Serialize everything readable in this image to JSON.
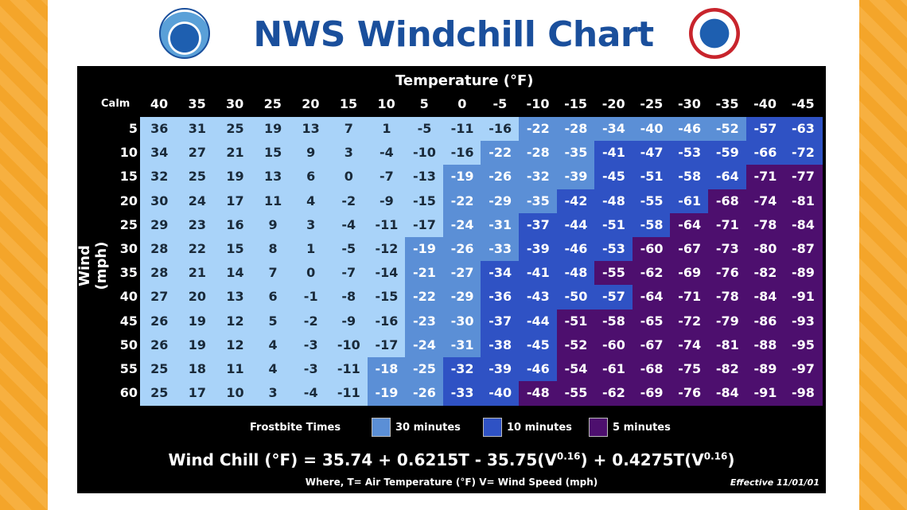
{
  "title": "NWS Windchill Chart",
  "logos": {
    "left": "NOAA",
    "right": "National Weather Service"
  },
  "colors": {
    "none": "#a9d3f9",
    "30": "#5b8fd6",
    "10": "#2f52c4",
    "5": "#4d0f6e",
    "title": "#1a4f9c",
    "frame": "#f4a52a"
  },
  "chart_data": {
    "type": "table",
    "title": "NWS Windchill Chart",
    "xlabel": "Temperature (°F)",
    "ylabel": "Wind (mph)",
    "calm_label": "Calm",
    "temperatures": [
      "40",
      "35",
      "30",
      "25",
      "20",
      "15",
      "10",
      "5",
      "0",
      "-5",
      "-10",
      "-15",
      "-20",
      "-25",
      "-30",
      "-35",
      "-40",
      "-45"
    ],
    "winds": [
      "5",
      "10",
      "15",
      "20",
      "25",
      "30",
      "35",
      "40",
      "45",
      "50",
      "55",
      "60"
    ],
    "values": [
      [
        36,
        31,
        25,
        19,
        13,
        7,
        1,
        -5,
        -11,
        -16,
        -22,
        -28,
        -34,
        -40,
        -46,
        -52,
        -57,
        -63
      ],
      [
        34,
        27,
        21,
        15,
        9,
        3,
        -4,
        -10,
        -16,
        -22,
        -28,
        -35,
        -41,
        -47,
        -53,
        -59,
        -66,
        -72
      ],
      [
        32,
        25,
        19,
        13,
        6,
        0,
        -7,
        -13,
        -19,
        -26,
        -32,
        -39,
        -45,
        -51,
        -58,
        -64,
        -71,
        -77
      ],
      [
        30,
        24,
        17,
        11,
        4,
        -2,
        -9,
        -15,
        -22,
        -29,
        -35,
        -42,
        -48,
        -55,
        -61,
        -68,
        -74,
        -81
      ],
      [
        29,
        23,
        16,
        9,
        3,
        -4,
        -11,
        -17,
        -24,
        -31,
        -37,
        -44,
        -51,
        -58,
        -64,
        -71,
        -78,
        -84
      ],
      [
        28,
        22,
        15,
        8,
        1,
        -5,
        -12,
        -19,
        -26,
        -33,
        -39,
        -46,
        -53,
        -60,
        -67,
        -73,
        -80,
        -87
      ],
      [
        28,
        21,
        14,
        7,
        0,
        -7,
        -14,
        -21,
        -27,
        -34,
        -41,
        -48,
        -55,
        -62,
        -69,
        -76,
        -82,
        -89
      ],
      [
        27,
        20,
        13,
        6,
        -1,
        -8,
        -15,
        -22,
        -29,
        -36,
        -43,
        -50,
        -57,
        -64,
        -71,
        -78,
        -84,
        -91
      ],
      [
        26,
        19,
        12,
        5,
        -2,
        -9,
        -16,
        -23,
        -30,
        -37,
        -44,
        -51,
        -58,
        -65,
        -72,
        -79,
        -86,
        -93
      ],
      [
        26,
        19,
        12,
        4,
        -3,
        -10,
        -17,
        -24,
        -31,
        -38,
        -45,
        -52,
        -60,
        -67,
        -74,
        -81,
        -88,
        -95
      ],
      [
        25,
        18,
        11,
        4,
        -3,
        -11,
        -18,
        -25,
        -32,
        -39,
        -46,
        -54,
        -61,
        -68,
        -75,
        -82,
        -89,
        -97
      ],
      [
        25,
        17,
        10,
        3,
        -4,
        -11,
        -19,
        -26,
        -33,
        -40,
        -48,
        -55,
        -62,
        -69,
        -76,
        -84,
        -91,
        -98
      ]
    ],
    "frostbite_zone_minutes": [
      [
        0,
        0,
        0,
        0,
        0,
        0,
        0,
        0,
        0,
        0,
        30,
        30,
        30,
        30,
        30,
        30,
        10,
        10
      ],
      [
        0,
        0,
        0,
        0,
        0,
        0,
        0,
        0,
        0,
        30,
        30,
        30,
        10,
        10,
        10,
        10,
        10,
        10
      ],
      [
        0,
        0,
        0,
        0,
        0,
        0,
        0,
        0,
        30,
        30,
        30,
        30,
        10,
        10,
        10,
        10,
        5,
        5
      ],
      [
        0,
        0,
        0,
        0,
        0,
        0,
        0,
        0,
        30,
        30,
        30,
        10,
        10,
        10,
        10,
        5,
        5,
        5
      ],
      [
        0,
        0,
        0,
        0,
        0,
        0,
        0,
        0,
        30,
        30,
        10,
        10,
        10,
        10,
        5,
        5,
        5,
        5
      ],
      [
        0,
        0,
        0,
        0,
        0,
        0,
        0,
        30,
        30,
        30,
        10,
        10,
        10,
        5,
        5,
        5,
        5,
        5
      ],
      [
        0,
        0,
        0,
        0,
        0,
        0,
        0,
        30,
        30,
        10,
        10,
        10,
        5,
        5,
        5,
        5,
        5,
        5
      ],
      [
        0,
        0,
        0,
        0,
        0,
        0,
        0,
        30,
        30,
        10,
        10,
        10,
        10,
        5,
        5,
        5,
        5,
        5
      ],
      [
        0,
        0,
        0,
        0,
        0,
        0,
        0,
        30,
        30,
        10,
        10,
        5,
        5,
        5,
        5,
        5,
        5,
        5
      ],
      [
        0,
        0,
        0,
        0,
        0,
        0,
        0,
        30,
        30,
        10,
        10,
        5,
        5,
        5,
        5,
        5,
        5,
        5
      ],
      [
        0,
        0,
        0,
        0,
        0,
        0,
        30,
        30,
        10,
        10,
        10,
        5,
        5,
        5,
        5,
        5,
        5,
        5
      ],
      [
        0,
        0,
        0,
        0,
        0,
        0,
        30,
        30,
        10,
        10,
        5,
        5,
        5,
        5,
        5,
        5,
        5,
        5
      ]
    ],
    "legend": {
      "title": "Frostbite Times",
      "items": [
        "30 minutes",
        "10 minutes",
        "5 minutes"
      ]
    }
  },
  "formula": {
    "lhs": "Wind Chill (°F) = 35.74 + 0.6215T - 35.75(V",
    "exp1": "0.16",
    "mid": ") + 0.4275T(V",
    "exp2": "0.16",
    "end": ")"
  },
  "where": "Where, T= Air Temperature (°F)  V= Wind Speed (mph)",
  "effective": "Effective 11/01/01"
}
